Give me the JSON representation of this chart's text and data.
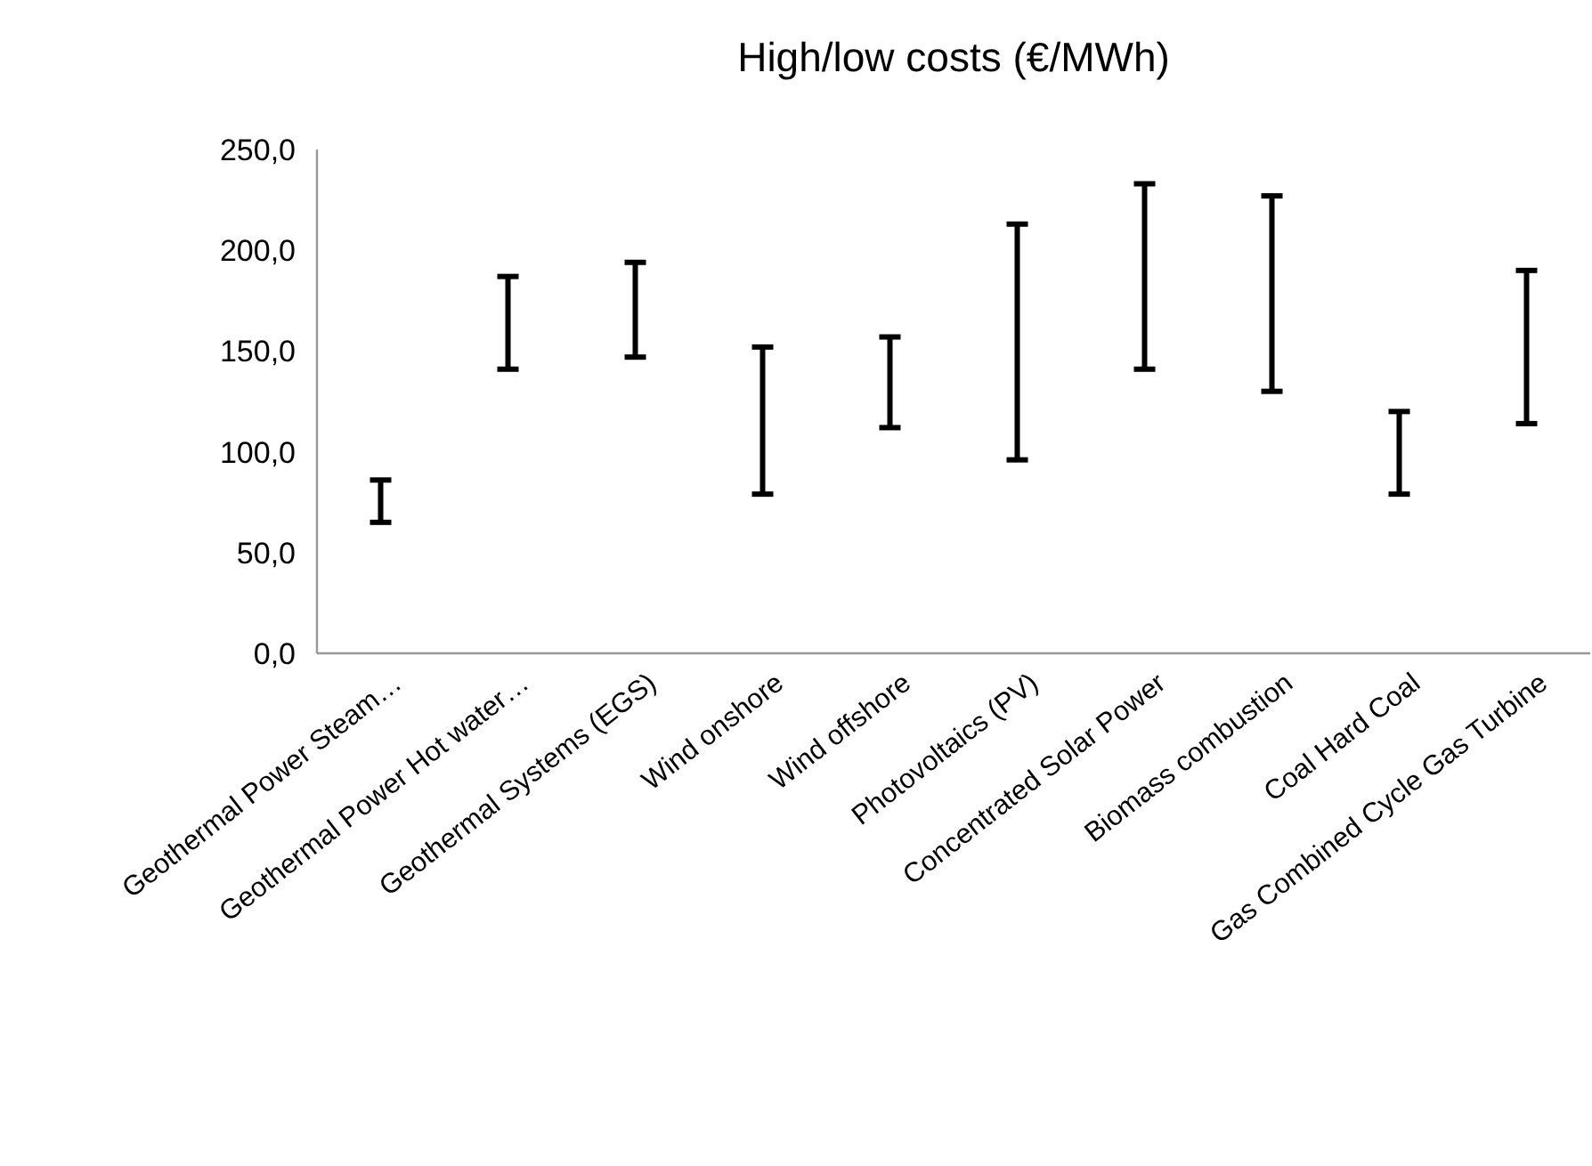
{
  "chart_data": {
    "type": "bar",
    "title": "High/low costs (€/MWh)",
    "categories": [
      "Geothermal Power Steam…",
      "Geothermal Power Hot water…",
      "Geothermal Systems (EGS)",
      "Wind onshore",
      "Wind offshore",
      "Photovoltaics (PV)",
      "Concentrated Solar Power",
      "Biomass combustion",
      "Coal Hard Coal",
      "Gas Combined Cycle Gas Turbine"
    ],
    "base": [
      65,
      141,
      147,
      79,
      112,
      96,
      141,
      130,
      79,
      114
    ],
    "values": [
      21,
      46,
      47,
      73,
      45,
      117,
      92,
      97,
      41,
      76
    ],
    "color": "#000000",
    "ylim": [
      0,
      250
    ],
    "yticks": [
      {
        "value": 0,
        "label": "0,0"
      },
      {
        "value": 50,
        "label": "50,0"
      },
      {
        "value": 100,
        "label": "100,0"
      },
      {
        "value": 150,
        "label": "150,0"
      },
      {
        "value": 200,
        "label": "200,0"
      },
      {
        "value": 250,
        "label": "250,0"
      }
    ]
  }
}
